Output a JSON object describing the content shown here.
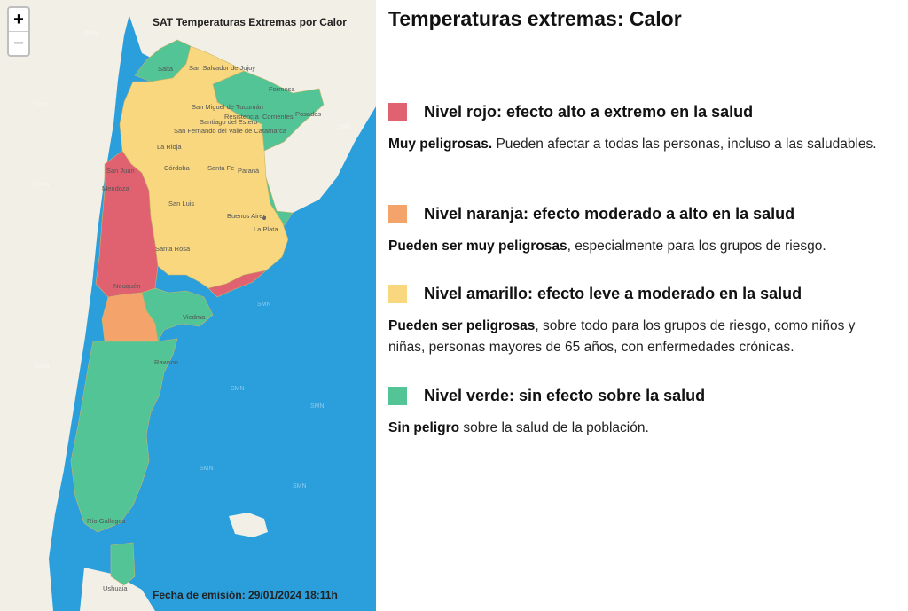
{
  "map": {
    "title": "SAT Temperaturas Extremas por Calor",
    "zoom_in": "+",
    "zoom_out": "−",
    "date": "Fecha de emisión: 29/01/2024 18:11h",
    "watermark": "SMN",
    "cities": [
      "Salta",
      "San Salvador de Jujuy",
      "Formosa",
      "Posadas",
      "Corrientes",
      "Resistencia",
      "San Miguel de Tucumán",
      "Santiago del Estero",
      "San Fernando del Valle de Catamarca",
      "La Rioja",
      "Córdoba",
      "Santa Fe",
      "Paraná",
      "San Juan",
      "Mendoza",
      "San Luis",
      "Buenos Aires",
      "La Plata",
      "Santa Rosa",
      "Neuquén",
      "Viedma",
      "Rawson",
      "Río Gallegos",
      "Ushuaia"
    ],
    "colors": {
      "sea": "#2a9fdc",
      "land": "#f2efe6",
      "rojo": "#e06271",
      "naranja": "#f4a46a",
      "amarillo": "#f8d77e",
      "verde": "#52c496"
    }
  },
  "legend": {
    "title": "Temperaturas extremas: Calor",
    "levels": [
      {
        "color": "#e06271",
        "name": "Nivel rojo: efecto alto a extremo en la salud",
        "desc_bold": "Muy peligrosas.",
        "desc_rest": " Pueden afectar a todas las personas, incluso a las saludables."
      },
      {
        "color": "#f4a46a",
        "name": "Nivel naranja: efecto moderado a alto en la salud",
        "desc_bold": "Pueden ser muy peligrosas",
        "desc_rest": ", especialmente para los grupos de riesgo."
      },
      {
        "color": "#f8d77e",
        "name": "Nivel amarillo: efecto leve a moderado en la salud",
        "desc_bold": "Pueden ser peligrosas",
        "desc_rest": ", sobre todo para los grupos de riesgo, como niños y niñas, personas mayores de 65 años, con enfermedades crónicas."
      },
      {
        "color": "#52c496",
        "name": "Nivel verde: sin efecto sobre la salud",
        "desc_bold": "Sin peligro",
        "desc_rest": " sobre la salud de la población."
      }
    ]
  }
}
